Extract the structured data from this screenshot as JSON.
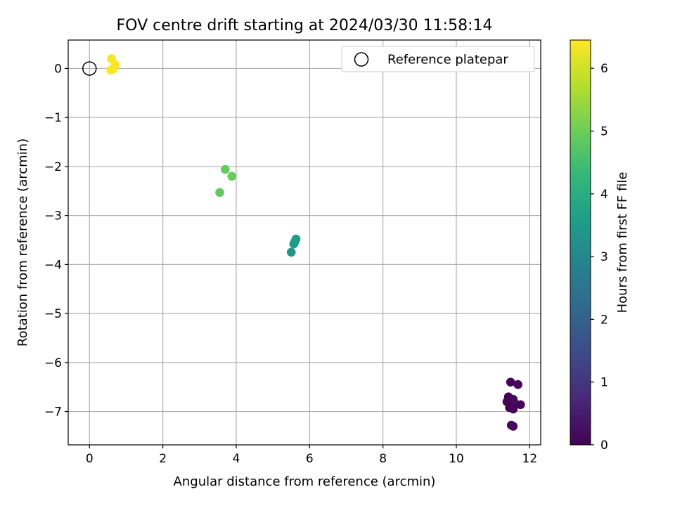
{
  "chart_data": {
    "type": "scatter",
    "title": "FOV centre drift starting at 2024/03/30 11:58:14",
    "xlabel": "Angular distance from reference (arcmin)",
    "ylabel": "Rotation from reference (arcmin)",
    "xlim": [
      -0.58,
      12.3
    ],
    "ylim": [
      -7.68,
      0.58
    ],
    "xticks": [
      0,
      2,
      4,
      6,
      8,
      10,
      12
    ],
    "yticks": [
      0,
      -1,
      -2,
      -3,
      -4,
      -5,
      -6,
      -7
    ],
    "grid": true,
    "legend": {
      "placement": "top-right",
      "entries": [
        "Reference platepar"
      ]
    },
    "reference_point": {
      "x": 0,
      "y": 0
    },
    "colorbar": {
      "label": "Hours from first FF file",
      "colormap": "viridis",
      "range": [
        0,
        6.45
      ],
      "ticks": [
        0,
        1,
        2,
        3,
        4,
        5,
        6
      ]
    },
    "points": [
      {
        "x": 11.48,
        "y": -6.4,
        "hours": 0.05
      },
      {
        "x": 11.68,
        "y": -6.45,
        "hours": 0.1
      },
      {
        "x": 11.42,
        "y": -6.7,
        "hours": 0.0
      },
      {
        "x": 11.55,
        "y": -6.75,
        "hours": 0.15
      },
      {
        "x": 11.38,
        "y": -6.8,
        "hours": 0.05
      },
      {
        "x": 11.5,
        "y": -6.85,
        "hours": 0.1
      },
      {
        "x": 11.62,
        "y": -6.85,
        "hours": 0.2
      },
      {
        "x": 11.75,
        "y": -6.86,
        "hours": 0.1
      },
      {
        "x": 11.45,
        "y": -6.92,
        "hours": 0.0
      },
      {
        "x": 11.55,
        "y": -6.95,
        "hours": 0.05
      },
      {
        "x": 11.5,
        "y": -7.28,
        "hours": 0.1
      },
      {
        "x": 11.55,
        "y": -7.3,
        "hours": 0.15
      },
      {
        "x": 5.5,
        "y": -3.75,
        "hours": 3.4
      },
      {
        "x": 5.57,
        "y": -3.58,
        "hours": 3.45
      },
      {
        "x": 5.6,
        "y": -3.53,
        "hours": 3.5
      },
      {
        "x": 5.63,
        "y": -3.48,
        "hours": 3.55
      },
      {
        "x": 3.55,
        "y": -2.53,
        "hours": 4.85
      },
      {
        "x": 3.7,
        "y": -2.06,
        "hours": 4.9
      },
      {
        "x": 3.88,
        "y": -2.2,
        "hours": 4.95
      },
      {
        "x": 0.6,
        "y": 0.2,
        "hours": 6.35
      },
      {
        "x": 0.7,
        "y": 0.08,
        "hours": 6.4
      },
      {
        "x": 0.63,
        "y": -0.02,
        "hours": 6.4
      },
      {
        "x": 0.58,
        "y": -0.03,
        "hours": 6.45
      }
    ]
  }
}
